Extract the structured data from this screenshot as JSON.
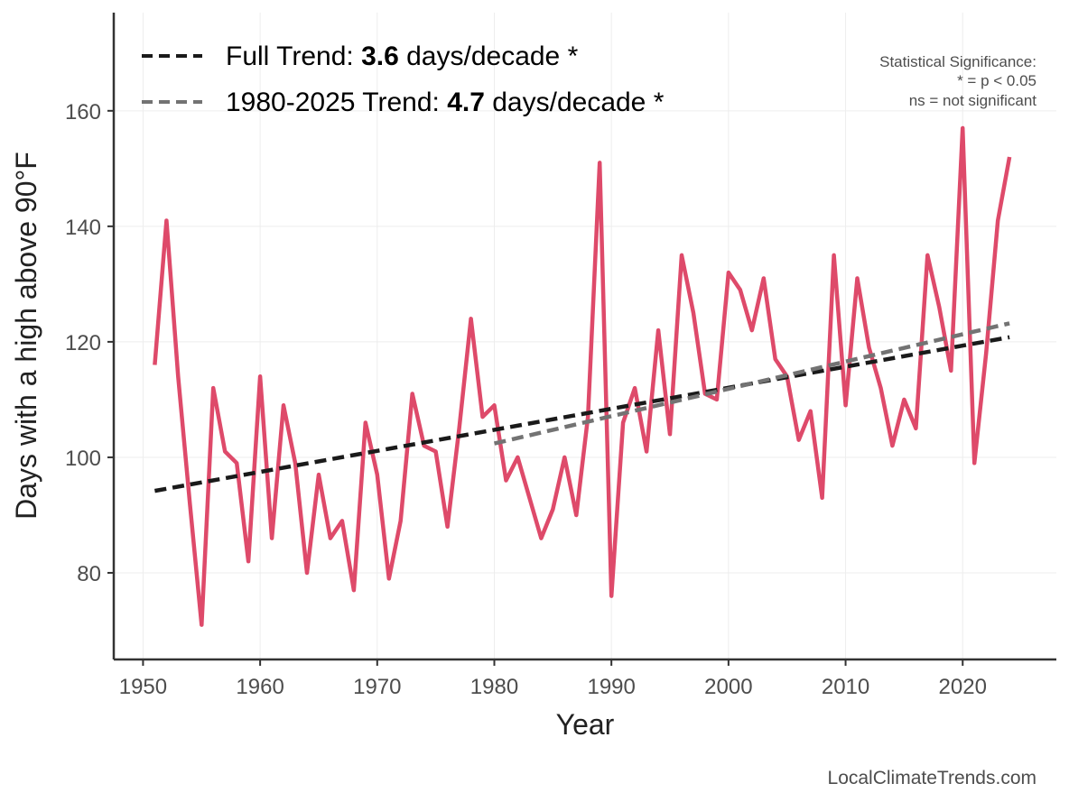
{
  "chart_data": {
    "type": "line",
    "xlabel": "Year",
    "ylabel": "Days with a high above 90°F",
    "xlim": [
      1947.5,
      2028
    ],
    "ylim": [
      65,
      177
    ],
    "x_ticks": [
      1950,
      1960,
      1970,
      1980,
      1990,
      2000,
      2010,
      2020
    ],
    "y_ticks": [
      80,
      100,
      120,
      140,
      160
    ],
    "grid": true,
    "legend_position": "top-left",
    "series": [
      {
        "color": "#de4a6a",
        "x": [
          1951,
          1952,
          1953,
          1954,
          1955,
          1956,
          1957,
          1958,
          1959,
          1960,
          1961,
          1962,
          1963,
          1964,
          1965,
          1966,
          1967,
          1968,
          1969,
          1970,
          1971,
          1972,
          1973,
          1974,
          1975,
          1976,
          1977,
          1978,
          1979,
          1980,
          1981,
          1982,
          1983,
          1984,
          1985,
          1986,
          1987,
          1988,
          1989,
          1990,
          1991,
          1992,
          1993,
          1994,
          1995,
          1996,
          1997,
          1998,
          1999,
          2000,
          2001,
          2002,
          2003,
          2004,
          2005,
          2006,
          2007,
          2008,
          2009,
          2010,
          2011,
          2012,
          2013,
          2014,
          2015,
          2016,
          2017,
          2018,
          2019,
          2020,
          2021,
          2022,
          2023,
          2024
        ],
        "values": [
          116,
          141,
          114,
          92,
          71,
          112,
          101,
          99,
          82,
          114,
          86,
          109,
          99,
          80,
          97,
          86,
          89,
          77,
          106,
          97,
          79,
          89,
          111,
          102,
          101,
          88,
          105,
          124,
          107,
          109,
          96,
          100,
          93,
          86,
          91,
          100,
          90,
          107,
          151,
          76,
          106,
          112,
          101,
          122,
          104,
          135,
          125,
          111,
          110,
          132,
          129,
          122,
          131,
          117,
          114,
          103,
          108,
          93,
          135,
          109,
          131,
          119,
          112,
          102,
          110,
          105,
          135,
          126,
          115,
          157,
          99,
          118,
          141,
          152
        ]
      },
      {
        "name": "Full Trend: 3.6 days/decade *",
        "color": "#1a1a1a",
        "dash": true,
        "x": [
          1951,
          2024
        ],
        "values": [
          94.2,
          120.8
        ]
      },
      {
        "name": "1980-2025 Trend: 4.7 days/decade *",
        "color": "#737373",
        "dash": true,
        "x": [
          1980,
          2024
        ],
        "values": [
          102.4,
          123.2
        ]
      }
    ],
    "legend": [
      {
        "prefix": "Full Trend: ",
        "value": "3.6",
        "suffix": " days/decade *"
      },
      {
        "prefix": "1980-2025 Trend: ",
        "value": "4.7",
        "suffix": " days/decade *"
      }
    ],
    "annotation": {
      "lines": [
        "Statistical Significance:",
        "* = p < 0.05",
        "ns = not significant"
      ]
    },
    "credit": "LocalClimateTrends.com"
  }
}
